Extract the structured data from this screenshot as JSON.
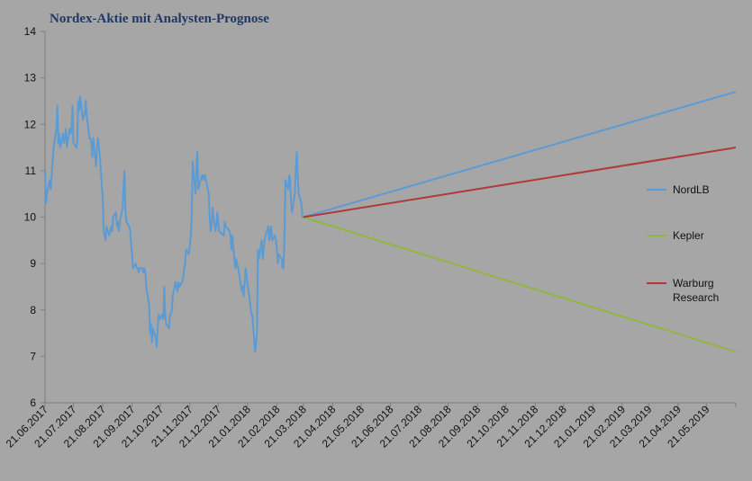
{
  "chart_data": {
    "type": "line",
    "title": "Nordex-Aktie mit Analysten-Prognose",
    "xlabel": "",
    "ylabel": "",
    "ylim": [
      6,
      14
    ],
    "yticks": [
      6,
      7,
      8,
      9,
      10,
      11,
      12,
      13,
      14
    ],
    "x_range": [
      "2017-06-21",
      "2019-06-21"
    ],
    "xtick_labels": [
      "21.06.2017",
      "21.07.2017",
      "21.08.2017",
      "21.09.2017",
      "21.10.2017",
      "21.11.2017",
      "21.12.2017",
      "21.01.2018",
      "21.02.2018",
      "21.03.2018",
      "21.04.2018",
      "21.05.2018",
      "21.06.2018",
      "21.07.2018",
      "21.08.2018",
      "21.09.2018",
      "21.10.2018",
      "21.11.2018",
      "21.12.2018",
      "21.01.2019",
      "21.02.2019",
      "21.03.2019",
      "21.04.2019",
      "21.05.2019"
    ],
    "grid": false,
    "legend_position": "right",
    "series": [
      {
        "name": "",
        "color": "#5b9bd5",
        "points": [
          [
            "2017-06-21",
            11.0
          ],
          [
            "2017-06-22",
            10.3
          ],
          [
            "2017-06-23",
            10.5
          ],
          [
            "2017-06-26",
            10.8
          ],
          [
            "2017-06-27",
            10.6
          ],
          [
            "2017-06-28",
            10.9
          ],
          [
            "2017-06-29",
            11.2
          ],
          [
            "2017-06-30",
            11.5
          ],
          [
            "2017-07-03",
            11.9
          ],
          [
            "2017-07-04",
            12.4
          ],
          [
            "2017-07-05",
            11.6
          ],
          [
            "2017-07-06",
            11.8
          ],
          [
            "2017-07-07",
            11.5
          ],
          [
            "2017-07-10",
            11.8
          ],
          [
            "2017-07-11",
            11.6
          ],
          [
            "2017-07-12",
            11.7
          ],
          [
            "2017-07-13",
            11.9
          ],
          [
            "2017-07-14",
            11.5
          ],
          [
            "2017-07-17",
            11.9
          ],
          [
            "2017-07-18",
            11.8
          ],
          [
            "2017-07-19",
            11.9
          ],
          [
            "2017-07-20",
            12.4
          ],
          [
            "2017-07-21",
            11.6
          ],
          [
            "2017-07-24",
            11.5
          ],
          [
            "2017-07-25",
            11.6
          ],
          [
            "2017-07-26",
            12.5
          ],
          [
            "2017-07-27",
            12.3
          ],
          [
            "2017-07-28",
            12.6
          ],
          [
            "2017-07-31",
            12.1
          ],
          [
            "2017-08-01",
            12.2
          ],
          [
            "2017-08-02",
            12.2
          ],
          [
            "2017-08-03",
            12.5
          ],
          [
            "2017-08-04",
            12.2
          ],
          [
            "2017-08-07",
            11.7
          ],
          [
            "2017-08-08",
            11.7
          ],
          [
            "2017-08-09",
            11.6
          ],
          [
            "2017-08-10",
            11.3
          ],
          [
            "2017-08-11",
            11.7
          ],
          [
            "2017-08-14",
            11.1
          ],
          [
            "2017-08-15",
            11.5
          ],
          [
            "2017-08-16",
            11.7
          ],
          [
            "2017-08-17",
            11.5
          ],
          [
            "2017-08-18",
            11.3
          ],
          [
            "2017-08-21",
            10.4
          ],
          [
            "2017-08-22",
            9.7
          ],
          [
            "2017-08-23",
            9.6
          ],
          [
            "2017-08-24",
            9.5
          ],
          [
            "2017-08-25",
            9.8
          ],
          [
            "2017-08-28",
            9.6
          ],
          [
            "2017-08-29",
            9.7
          ],
          [
            "2017-08-30",
            9.8
          ],
          [
            "2017-08-31",
            9.7
          ],
          [
            "2017-09-01",
            10.0
          ],
          [
            "2017-09-04",
            10.1
          ],
          [
            "2017-09-05",
            9.8
          ],
          [
            "2017-09-06",
            9.9
          ],
          [
            "2017-09-07",
            9.7
          ],
          [
            "2017-09-08",
            9.9
          ],
          [
            "2017-09-11",
            10.2
          ],
          [
            "2017-09-12",
            10.7
          ],
          [
            "2017-09-13",
            11.0
          ],
          [
            "2017-09-14",
            10.1
          ],
          [
            "2017-09-15",
            9.9
          ],
          [
            "2017-09-18",
            9.8
          ],
          [
            "2017-09-19",
            9.7
          ],
          [
            "2017-09-20",
            9.4
          ],
          [
            "2017-09-21",
            9.2
          ],
          [
            "2017-09-22",
            8.9
          ],
          [
            "2017-09-25",
            9.0
          ],
          [
            "2017-09-26",
            8.9
          ],
          [
            "2017-09-27",
            8.9
          ],
          [
            "2017-09-28",
            8.8
          ],
          [
            "2017-09-29",
            8.9
          ],
          [
            "2017-10-02",
            8.9
          ],
          [
            "2017-10-03",
            8.8
          ],
          [
            "2017-10-04",
            8.9
          ],
          [
            "2017-10-05",
            8.8
          ],
          [
            "2017-10-06",
            8.5
          ],
          [
            "2017-10-09",
            8.1
          ],
          [
            "2017-10-10",
            7.5
          ],
          [
            "2017-10-11",
            7.7
          ],
          [
            "2017-10-12",
            7.3
          ],
          [
            "2017-10-13",
            7.6
          ],
          [
            "2017-10-16",
            7.4
          ],
          [
            "2017-10-17",
            7.2
          ],
          [
            "2017-10-18",
            7.6
          ],
          [
            "2017-10-19",
            7.9
          ],
          [
            "2017-10-20",
            7.8
          ],
          [
            "2017-10-23",
            7.9
          ],
          [
            "2017-10-24",
            7.8
          ],
          [
            "2017-10-25",
            8.5
          ],
          [
            "2017-10-26",
            7.9
          ],
          [
            "2017-10-27",
            7.7
          ],
          [
            "2017-10-30",
            7.6
          ],
          [
            "2017-10-31",
            7.9
          ],
          [
            "2017-11-01",
            7.9
          ],
          [
            "2017-11-02",
            8.0
          ],
          [
            "2017-11-03",
            8.3
          ],
          [
            "2017-11-06",
            8.6
          ],
          [
            "2017-11-07",
            8.5
          ],
          [
            "2017-11-08",
            8.4
          ],
          [
            "2017-11-09",
            8.6
          ],
          [
            "2017-11-10",
            8.5
          ],
          [
            "2017-11-13",
            8.6
          ],
          [
            "2017-11-14",
            8.7
          ],
          [
            "2017-11-15",
            8.9
          ],
          [
            "2017-11-16",
            9.0
          ],
          [
            "2017-11-17",
            9.3
          ],
          [
            "2017-11-20",
            9.2
          ],
          [
            "2017-11-21",
            9.4
          ],
          [
            "2017-11-22",
            9.6
          ],
          [
            "2017-11-23",
            10.0
          ],
          [
            "2017-11-24",
            11.2
          ],
          [
            "2017-11-27",
            10.5
          ],
          [
            "2017-11-28",
            11.1
          ],
          [
            "2017-11-29",
            11.4
          ],
          [
            "2017-11-30",
            10.6
          ],
          [
            "2017-12-01",
            10.7
          ],
          [
            "2017-12-04",
            10.9
          ],
          [
            "2017-12-05",
            10.8
          ],
          [
            "2017-12-06",
            10.9
          ],
          [
            "2017-12-07",
            10.9
          ],
          [
            "2017-12-08",
            10.8
          ],
          [
            "2017-12-11",
            10.5
          ],
          [
            "2017-12-12",
            10.0
          ],
          [
            "2017-12-13",
            9.7
          ],
          [
            "2017-12-14",
            9.8
          ],
          [
            "2017-12-15",
            10.2
          ],
          [
            "2017-12-18",
            9.7
          ],
          [
            "2017-12-19",
            9.8
          ],
          [
            "2017-12-20",
            10.1
          ],
          [
            "2017-12-21",
            9.9
          ],
          [
            "2017-12-22",
            9.7
          ],
          [
            "2017-12-27",
            9.6
          ],
          [
            "2017-12-28",
            9.9
          ],
          [
            "2017-12-29",
            9.8
          ],
          [
            "2018-01-02",
            9.7
          ],
          [
            "2018-01-03",
            9.6
          ],
          [
            "2018-01-04",
            9.3
          ],
          [
            "2018-01-05",
            9.6
          ],
          [
            "2018-01-08",
            8.9
          ],
          [
            "2018-01-09",
            9.1
          ],
          [
            "2018-01-10",
            9.0
          ],
          [
            "2018-01-11",
            8.9
          ],
          [
            "2018-01-12",
            8.8
          ],
          [
            "2018-01-15",
            8.4
          ],
          [
            "2018-01-16",
            8.5
          ],
          [
            "2018-01-17",
            8.3
          ],
          [
            "2018-01-18",
            8.6
          ],
          [
            "2018-01-19",
            8.9
          ],
          [
            "2018-01-22",
            8.4
          ],
          [
            "2018-01-23",
            8.3
          ],
          [
            "2018-01-24",
            8.1
          ],
          [
            "2018-01-25",
            7.9
          ],
          [
            "2018-01-26",
            7.9
          ],
          [
            "2018-01-29",
            7.1
          ],
          [
            "2018-01-30",
            7.3
          ],
          [
            "2018-01-31",
            7.5
          ],
          [
            "2018-02-01",
            9.3
          ],
          [
            "2018-02-02",
            9.1
          ],
          [
            "2018-02-05",
            9.5
          ],
          [
            "2018-02-06",
            9.1
          ],
          [
            "2018-02-07",
            9.3
          ],
          [
            "2018-02-08",
            9.5
          ],
          [
            "2018-02-09",
            9.6
          ],
          [
            "2018-02-12",
            9.8
          ],
          [
            "2018-02-13",
            9.5
          ],
          [
            "2018-02-14",
            9.7
          ],
          [
            "2018-02-15",
            9.8
          ],
          [
            "2018-02-16",
            9.5
          ],
          [
            "2018-02-19",
            9.6
          ],
          [
            "2018-02-20",
            9.5
          ],
          [
            "2018-02-21",
            9.3
          ],
          [
            "2018-02-22",
            9.0
          ],
          [
            "2018-02-23",
            9.2
          ],
          [
            "2018-02-26",
            9.1
          ],
          [
            "2018-02-27",
            8.9
          ],
          [
            "2018-02-28",
            8.9
          ],
          [
            "2018-03-01",
            9.5
          ],
          [
            "2018-03-02",
            10.8
          ],
          [
            "2018-03-05",
            10.6
          ],
          [
            "2018-03-06",
            10.9
          ],
          [
            "2018-03-07",
            10.8
          ],
          [
            "2018-03-08",
            10.3
          ],
          [
            "2018-03-09",
            10.1
          ],
          [
            "2018-03-12",
            10.5
          ],
          [
            "2018-03-13",
            11.0
          ],
          [
            "2018-03-14",
            11.4
          ],
          [
            "2018-03-15",
            10.9
          ],
          [
            "2018-03-16",
            10.5
          ],
          [
            "2018-03-19",
            10.3
          ],
          [
            "2018-03-20",
            10.0
          ],
          [
            "2018-03-21",
            10.0
          ]
        ]
      },
      {
        "name": "NordLB",
        "color": "#5b9bd5",
        "points": [
          [
            "2018-03-21",
            10.0
          ],
          [
            "2019-06-21",
            12.7
          ]
        ]
      },
      {
        "name": "Kepler",
        "color": "#92b53f",
        "points": [
          [
            "2018-03-21",
            10.0
          ],
          [
            "2019-06-21",
            7.1
          ]
        ]
      },
      {
        "name": "Warburg Research",
        "color": "#b03a3a",
        "points": [
          [
            "2018-03-21",
            10.0
          ],
          [
            "2019-06-21",
            11.5
          ]
        ]
      }
    ],
    "legend": [
      {
        "lines": [
          "NordLB"
        ],
        "color": "#5b9bd5"
      },
      {
        "lines": [
          "Kepler"
        ],
        "color": "#92b53f"
      },
      {
        "lines": [
          "Warburg",
          "Research"
        ],
        "color": "#b03a3a"
      }
    ]
  }
}
